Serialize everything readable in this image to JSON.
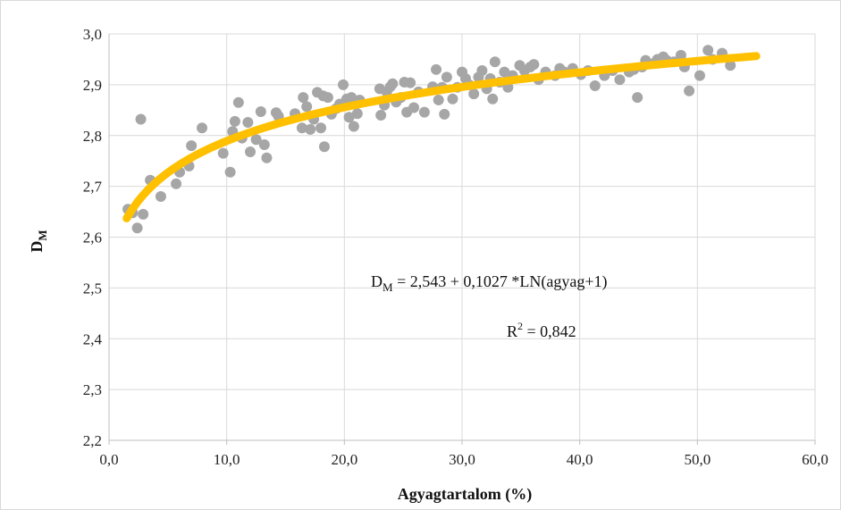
{
  "chart_data": {
    "type": "scatter",
    "xlabel": "Agyagtartalom (%)",
    "ylabel_main": "D",
    "ylabel_sub": "M",
    "xlim": [
      0,
      60
    ],
    "ylim": [
      2.2,
      3.0
    ],
    "x_ticks": [
      "0,0",
      "10,0",
      "20,0",
      "30,0",
      "40,0",
      "50,0",
      "60,0"
    ],
    "y_ticks": [
      "2,2",
      "2,3",
      "2,4",
      "2,5",
      "2,6",
      "2,7",
      "2,8",
      "2,9",
      "3,0"
    ],
    "grid": true,
    "colors": {
      "points": "#a6a6a6",
      "trendline": "#ffc000",
      "grid": "#d9d9d9",
      "axis": "#bfbfbf"
    },
    "trendline": {
      "type": "log",
      "intercept": 2.543,
      "slope": 0.1027,
      "x_range": [
        1.5,
        55
      ]
    },
    "annotations": {
      "equation_main": "D",
      "equation_sub": "M",
      "equation_rest": " = 2,543 + 0,1027 *LN(agyag+1)",
      "r2_main": "R",
      "r2_sup": "2",
      "r2_rest": " = 0,842"
    },
    "points": [
      [
        1.6,
        2.655
      ],
      [
        2.0,
        2.648
      ],
      [
        2.4,
        2.618
      ],
      [
        2.7,
        2.832
      ],
      [
        2.9,
        2.645
      ],
      [
        3.5,
        2.712
      ],
      [
        4.4,
        2.68
      ],
      [
        5.7,
        2.705
      ],
      [
        6.0,
        2.728
      ],
      [
        6.8,
        2.74
      ],
      [
        7.0,
        2.78
      ],
      [
        7.9,
        2.815
      ],
      [
        9.7,
        2.765
      ],
      [
        10.3,
        2.728
      ],
      [
        10.5,
        2.808
      ],
      [
        10.7,
        2.828
      ],
      [
        11.0,
        2.865
      ],
      [
        11.3,
        2.795
      ],
      [
        11.8,
        2.826
      ],
      [
        12.0,
        2.768
      ],
      [
        12.5,
        2.792
      ],
      [
        12.9,
        2.847
      ],
      [
        13.2,
        2.782
      ],
      [
        13.4,
        2.756
      ],
      [
        14.2,
        2.845
      ],
      [
        14.4,
        2.838
      ],
      [
        15.8,
        2.843
      ],
      [
        16.4,
        2.815
      ],
      [
        16.5,
        2.875
      ],
      [
        16.8,
        2.857
      ],
      [
        17.1,
        2.812
      ],
      [
        17.4,
        2.832
      ],
      [
        17.7,
        2.885
      ],
      [
        18.0,
        2.815
      ],
      [
        18.2,
        2.878
      ],
      [
        18.3,
        2.778
      ],
      [
        18.6,
        2.875
      ],
      [
        18.9,
        2.842
      ],
      [
        19.3,
        2.853
      ],
      [
        19.6,
        2.862
      ],
      [
        19.9,
        2.9
      ],
      [
        20.2,
        2.872
      ],
      [
        20.4,
        2.836
      ],
      [
        20.6,
        2.875
      ],
      [
        20.8,
        2.818
      ],
      [
        21.1,
        2.843
      ],
      [
        21.3,
        2.87
      ],
      [
        23.0,
        2.892
      ],
      [
        23.1,
        2.84
      ],
      [
        23.4,
        2.86
      ],
      [
        23.6,
        2.886
      ],
      [
        23.9,
        2.896
      ],
      [
        24.1,
        2.902
      ],
      [
        24.4,
        2.866
      ],
      [
        24.8,
        2.875
      ],
      [
        25.1,
        2.905
      ],
      [
        25.3,
        2.846
      ],
      [
        25.6,
        2.904
      ],
      [
        25.9,
        2.855
      ],
      [
        26.3,
        2.886
      ],
      [
        26.8,
        2.846
      ],
      [
        27.5,
        2.896
      ],
      [
        27.8,
        2.93
      ],
      [
        28.0,
        2.87
      ],
      [
        28.3,
        2.895
      ],
      [
        28.5,
        2.842
      ],
      [
        28.7,
        2.915
      ],
      [
        29.2,
        2.872
      ],
      [
        29.6,
        2.895
      ],
      [
        30.0,
        2.925
      ],
      [
        30.3,
        2.912
      ],
      [
        30.6,
        2.9
      ],
      [
        31.0,
        2.882
      ],
      [
        31.4,
        2.915
      ],
      [
        31.7,
        2.928
      ],
      [
        32.1,
        2.892
      ],
      [
        32.4,
        2.912
      ],
      [
        32.6,
        2.872
      ],
      [
        32.8,
        2.945
      ],
      [
        33.2,
        2.905
      ],
      [
        33.6,
        2.925
      ],
      [
        33.9,
        2.895
      ],
      [
        34.3,
        2.918
      ],
      [
        34.9,
        2.938
      ],
      [
        35.3,
        2.928
      ],
      [
        35.8,
        2.935
      ],
      [
        36.1,
        2.94
      ],
      [
        36.5,
        2.91
      ],
      [
        37.1,
        2.925
      ],
      [
        37.9,
        2.918
      ],
      [
        38.3,
        2.932
      ],
      [
        38.7,
        2.925
      ],
      [
        39.4,
        2.932
      ],
      [
        40.1,
        2.92
      ],
      [
        40.7,
        2.928
      ],
      [
        41.3,
        2.898
      ],
      [
        42.1,
        2.918
      ],
      [
        42.8,
        2.928
      ],
      [
        43.4,
        2.91
      ],
      [
        44.2,
        2.925
      ],
      [
        44.6,
        2.93
      ],
      [
        44.9,
        2.875
      ],
      [
        45.3,
        2.935
      ],
      [
        45.6,
        2.948
      ],
      [
        46.3,
        2.942
      ],
      [
        46.6,
        2.95
      ],
      [
        47.1,
        2.955
      ],
      [
        47.4,
        2.948
      ],
      [
        48.0,
        2.945
      ],
      [
        48.6,
        2.958
      ],
      [
        48.9,
        2.935
      ],
      [
        49.3,
        2.888
      ],
      [
        50.2,
        2.918
      ],
      [
        50.9,
        2.968
      ],
      [
        51.3,
        2.95
      ],
      [
        52.1,
        2.962
      ],
      [
        52.8,
        2.938
      ]
    ]
  }
}
